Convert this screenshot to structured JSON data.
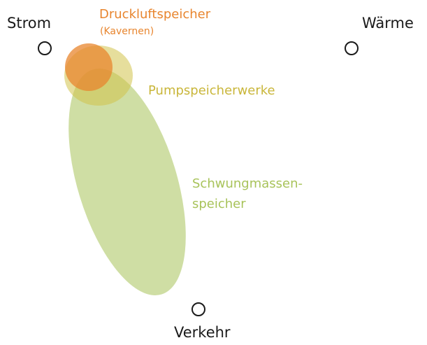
{
  "nodes": {
    "strom": "Strom",
    "waerme": "Wärme",
    "verkehr": "Verkehr"
  },
  "storage": {
    "druckluft": {
      "label": "Druckluftspeicher",
      "sublabel": "(Kavernen)",
      "color": "#e8852e"
    },
    "pumpspeicher": {
      "label": "Pumpspeicherwerke",
      "color": "#c9b63a"
    },
    "schwungmassen": {
      "label_line1": "Schwungmassen-",
      "label_line2": "speicher",
      "color": "#a8c35a"
    }
  }
}
